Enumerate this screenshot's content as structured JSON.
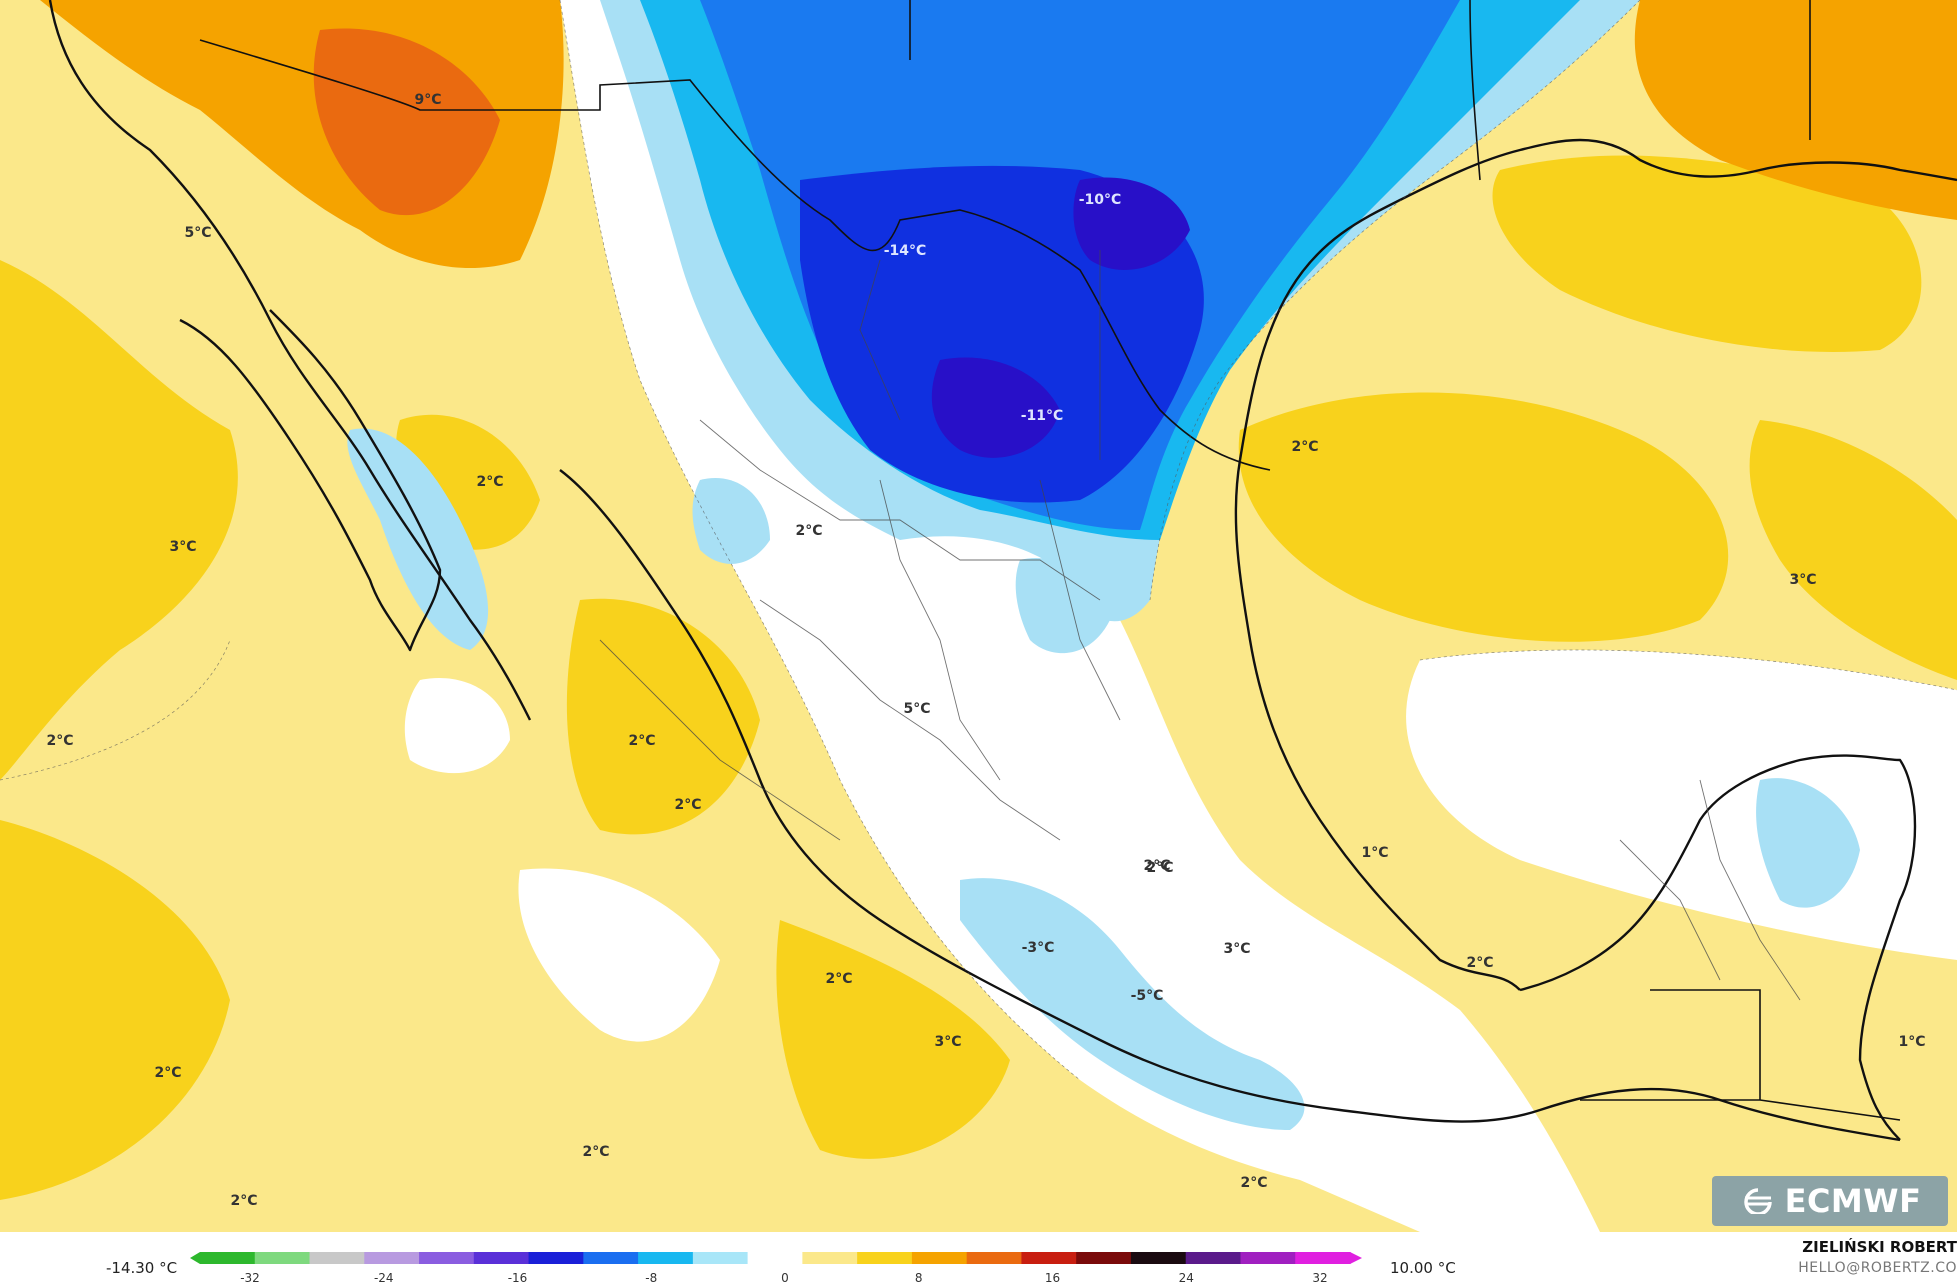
{
  "map": {
    "temperature_labels": [
      {
        "text": "9°C",
        "tone": "warm"
      },
      {
        "text": "5°C",
        "tone": "warm"
      },
      {
        "text": "-14°C",
        "tone": "cold"
      },
      {
        "text": "-10°C",
        "tone": "cold"
      },
      {
        "text": "-11°C",
        "tone": "cold"
      },
      {
        "text": "2°C",
        "tone": "warm"
      },
      {
        "text": "3°C",
        "tone": "warm"
      },
      {
        "text": "2°C",
        "tone": "warm"
      },
      {
        "text": "2°C",
        "tone": "warm"
      },
      {
        "text": "3°C",
        "tone": "warm"
      },
      {
        "text": "2°C",
        "tone": "warm"
      },
      {
        "text": "5°C",
        "tone": "warm"
      },
      {
        "text": "2°C",
        "tone": "warm"
      },
      {
        "text": "2°C",
        "tone": "warm"
      },
      {
        "text": "1°C",
        "tone": "warm"
      },
      {
        "text": "2°C",
        "tone": "warm"
      },
      {
        "text": "3°C",
        "tone": "warm"
      },
      {
        "text": "-3°C",
        "tone": "warm"
      },
      {
        "text": "-5°C",
        "tone": "warm"
      },
      {
        "text": "2°C",
        "tone": "warm"
      },
      {
        "text": "2°C",
        "tone": "warm"
      },
      {
        "text": "3°C",
        "tone": "warm"
      },
      {
        "text": "2°C",
        "tone": "warm"
      },
      {
        "text": "2°C",
        "tone": "warm"
      },
      {
        "text": "2°C",
        "tone": "warm"
      },
      {
        "text": "2°C",
        "tone": "warm"
      },
      {
        "text": "1°C",
        "tone": "warm"
      },
      {
        "text": "2°C",
        "tone": "warm"
      }
    ],
    "colors": {
      "ocean_warm": "#fbe88a",
      "warm_yellow": "#f8d21c",
      "orange": "#f5a300",
      "deep_orange": "#ea6a10",
      "near_zero": "#ffffff",
      "light_blue": "#a8e0f5",
      "cyan": "#18b8f0",
      "mid_blue": "#1a7af0",
      "deep_blue": "#1030e0",
      "border": "#111111"
    }
  },
  "logo": {
    "text": "ECMWF",
    "icon": "ecmwf-logo-icon"
  },
  "legend": {
    "min_label": "-14.30 °C",
    "max_label": "10.00 °C",
    "ticks": [
      "-32",
      "-24",
      "-16",
      "-8",
      "0",
      "8",
      "16",
      "24",
      "32"
    ],
    "palette": [
      "#2db82d",
      "#7ed97e",
      "#c8c8c8",
      "#b89ae0",
      "#8a5de0",
      "#5a30d8",
      "#1a20d8",
      "#1a6ef0",
      "#18b8f0",
      "#a8e6f8",
      "#ffffff",
      "#fbe88a",
      "#f8d21c",
      "#f5a300",
      "#ea6a10",
      "#c81e10",
      "#7a0a0a",
      "#1a0a10",
      "#5a1a8a",
      "#a020c0",
      "#e020e0"
    ]
  },
  "credit": {
    "name": "ZIELIŃSKI ROBERT",
    "email": "HELLO@ROBERTZ.CO"
  }
}
